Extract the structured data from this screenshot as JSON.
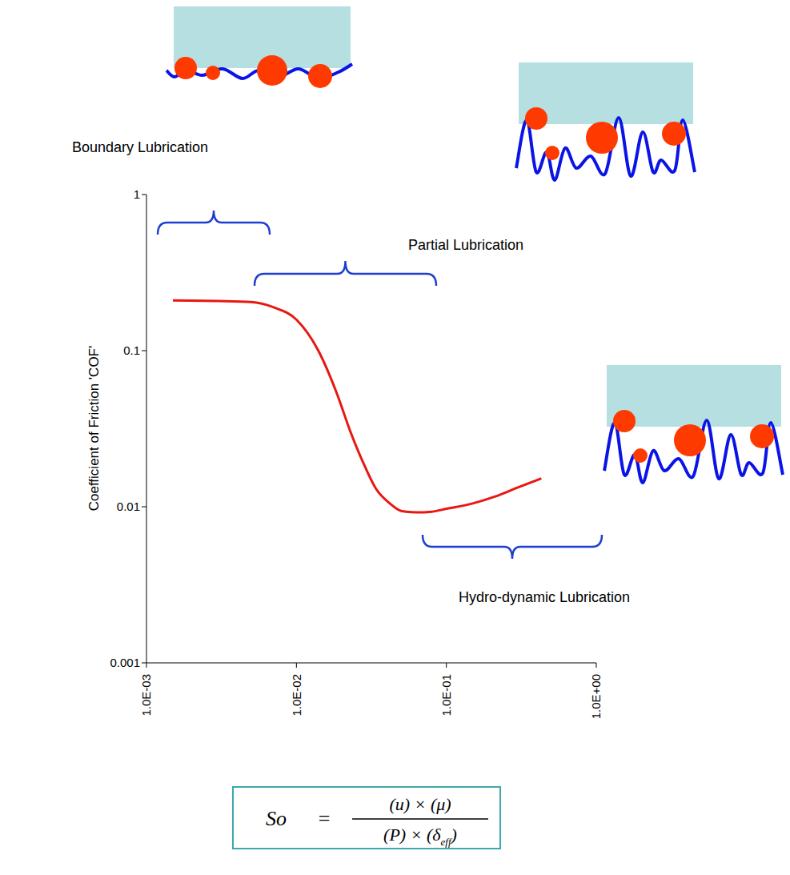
{
  "chart_data": {
    "type": "line",
    "x": [
      0.0015,
      0.003,
      0.005,
      0.007,
      0.01,
      0.014,
      0.0185,
      0.023,
      0.028,
      0.034,
      0.042,
      0.05,
      0.063,
      0.08,
      0.1,
      0.15,
      0.21,
      0.3,
      0.43
    ],
    "values": [
      0.21,
      0.208,
      0.205,
      0.19,
      0.158,
      0.1,
      0.054,
      0.03,
      0.019,
      0.013,
      0.0105,
      0.0094,
      0.0092,
      0.0093,
      0.0097,
      0.0105,
      0.0116,
      0.0133,
      0.0152
    ],
    "color": "#e8170f",
    "log": true,
    "grid": false,
    "xlim": [
      0.001,
      1
    ],
    "ylim": [
      0.001,
      1
    ],
    "xticks": [
      {
        "value": 0.001,
        "label": "1.0E-03"
      },
      {
        "value": 0.01,
        "label": "1.0E-02"
      },
      {
        "value": 0.1,
        "label": "1.0E-01"
      },
      {
        "value": 1,
        "label": "1.0E+00"
      }
    ],
    "yticks": [
      0.001,
      0.01,
      0.1,
      1
    ],
    "y_label": "Coefficient of Friction 'COF'",
    "annotations": [
      "Boundary Lubrication",
      "Partial Lubrication",
      "Hydro-dynamic Lubrication"
    ],
    "formula": {
      "lhs": "So",
      "equals": "=",
      "numerator": "(u) × (μ)",
      "denominator": "(P) × (δ",
      "denominator_subscript": "eff",
      "denominator_end": ")"
    }
  }
}
